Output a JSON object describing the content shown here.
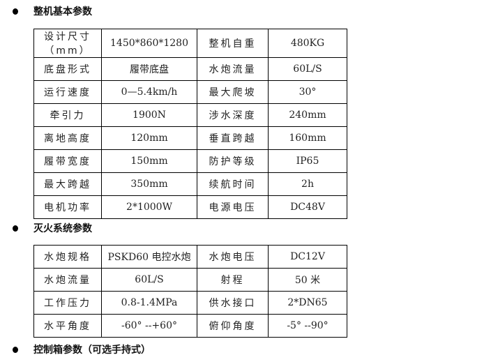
{
  "sections": [
    {
      "title": "整机基本参数"
    },
    {
      "title": "灭火系统参数"
    },
    {
      "title": "控制箱参数（可选手持式）"
    }
  ],
  "basic_table": [
    [
      "设计尺寸（mm）",
      "1450*860*1280",
      "整机自重",
      "480KG"
    ],
    [
      "底盘形式",
      "履带底盘",
      "水炮流量",
      "60L/S"
    ],
    [
      "运行速度",
      "0—5.4km/h",
      "最大爬坡",
      "30°"
    ],
    [
      "牵引力",
      "1900N",
      "涉水深度",
      "240mm"
    ],
    [
      "离地高度",
      "120mm",
      "垂直跨越",
      "160mm"
    ],
    [
      "履带宽度",
      "150mm",
      "防护等级",
      "IP65"
    ],
    [
      "最大跨越",
      "350mm",
      "续航时间",
      "2h"
    ],
    [
      "电机功率",
      "2*1000W",
      "电源电压",
      "DC48V"
    ]
  ],
  "fire_table": [
    [
      "水炮规格",
      "PSKD60 电控水炮",
      "水炮电压",
      "DC12V"
    ],
    [
      "水炮流量",
      "60L/S",
      "射程",
      "50 米"
    ],
    [
      "工作压力",
      "0.8-1.4MPa",
      "供水接口",
      "2*DN65"
    ],
    [
      "水平角度",
      "-60° --+60°",
      "俯仰角度",
      "-5° --90°"
    ]
  ]
}
